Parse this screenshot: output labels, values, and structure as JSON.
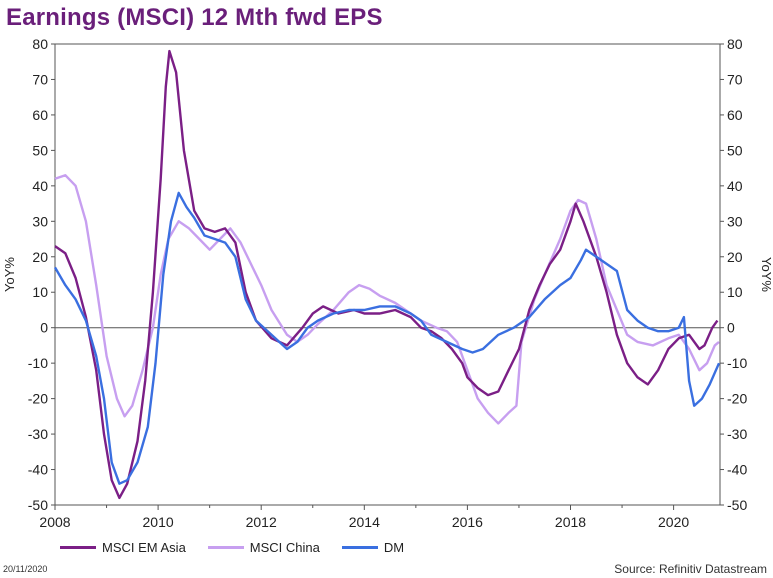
{
  "title": "Earnings (MSCI) 12 Mth fwd EPS",
  "footer": {
    "date": "20/11/2020",
    "source": "Source: Refinitiv Datastream"
  },
  "colors": {
    "msci_em_asia": "#7b1f86",
    "msci_china": "#c79ff0",
    "dm": "#3a6fe0",
    "title": "#6a1f7a"
  },
  "chart_data": {
    "type": "line",
    "title": "Earnings (MSCI) 12 Mth fwd EPS",
    "xlabel": "",
    "ylabel_left": "YoY%",
    "ylabel_right": "YoY%",
    "xlim": [
      2008,
      2020.9
    ],
    "ylim": [
      -50,
      80
    ],
    "x_ticks": [
      "2008",
      "2010",
      "2012",
      "2014",
      "2016",
      "2018",
      "2020"
    ],
    "y_ticks": [
      80,
      70,
      60,
      50,
      40,
      30,
      20,
      10,
      0,
      -10,
      -20,
      -30,
      -40,
      -50
    ],
    "legend_position": "bottom",
    "grid": false,
    "series": [
      {
        "name": "MSCI EM Asia",
        "color": "#7b1f86",
        "points": [
          [
            2008.0,
            23
          ],
          [
            2008.2,
            21
          ],
          [
            2008.4,
            14
          ],
          [
            2008.6,
            3
          ],
          [
            2008.8,
            -12
          ],
          [
            2008.95,
            -30
          ],
          [
            2009.1,
            -43
          ],
          [
            2009.25,
            -48
          ],
          [
            2009.4,
            -44
          ],
          [
            2009.6,
            -32
          ],
          [
            2009.75,
            -15
          ],
          [
            2009.9,
            10
          ],
          [
            2010.05,
            42
          ],
          [
            2010.15,
            68
          ],
          [
            2010.22,
            78
          ],
          [
            2010.35,
            72
          ],
          [
            2010.5,
            50
          ],
          [
            2010.7,
            33
          ],
          [
            2010.9,
            28
          ],
          [
            2011.1,
            27
          ],
          [
            2011.3,
            28
          ],
          [
            2011.5,
            24
          ],
          [
            2011.7,
            10
          ],
          [
            2011.9,
            2
          ],
          [
            2012.2,
            -3
          ],
          [
            2012.5,
            -5
          ],
          [
            2012.8,
            0
          ],
          [
            2013.0,
            4
          ],
          [
            2013.2,
            6
          ],
          [
            2013.5,
            4
          ],
          [
            2013.8,
            5
          ],
          [
            2014.0,
            4
          ],
          [
            2014.3,
            4
          ],
          [
            2014.6,
            5
          ],
          [
            2014.9,
            3
          ],
          [
            2015.1,
            0
          ],
          [
            2015.3,
            -1
          ],
          [
            2015.5,
            -3
          ],
          [
            2015.7,
            -6
          ],
          [
            2015.9,
            -10
          ],
          [
            2016.0,
            -14
          ],
          [
            2016.2,
            -17
          ],
          [
            2016.4,
            -19
          ],
          [
            2016.6,
            -18
          ],
          [
            2016.8,
            -12
          ],
          [
            2017.0,
            -6
          ],
          [
            2017.2,
            5
          ],
          [
            2017.4,
            12
          ],
          [
            2017.6,
            18
          ],
          [
            2017.8,
            22
          ],
          [
            2018.0,
            30
          ],
          [
            2018.1,
            35
          ],
          [
            2018.25,
            30
          ],
          [
            2018.5,
            20
          ],
          [
            2018.7,
            10
          ],
          [
            2018.9,
            -2
          ],
          [
            2019.1,
            -10
          ],
          [
            2019.3,
            -14
          ],
          [
            2019.5,
            -16
          ],
          [
            2019.7,
            -12
          ],
          [
            2019.9,
            -6
          ],
          [
            2020.1,
            -3
          ],
          [
            2020.3,
            -2
          ],
          [
            2020.5,
            -6
          ],
          [
            2020.6,
            -5
          ],
          [
            2020.75,
            0
          ],
          [
            2020.85,
            2
          ]
        ]
      },
      {
        "name": "MSCI China",
        "color": "#c79ff0",
        "points": [
          [
            2008.0,
            42
          ],
          [
            2008.2,
            43
          ],
          [
            2008.4,
            40
          ],
          [
            2008.6,
            30
          ],
          [
            2008.8,
            12
          ],
          [
            2009.0,
            -8
          ],
          [
            2009.2,
            -20
          ],
          [
            2009.35,
            -25
          ],
          [
            2009.5,
            -22
          ],
          [
            2009.7,
            -12
          ],
          [
            2009.9,
            0
          ],
          [
            2010.05,
            15
          ],
          [
            2010.2,
            25
          ],
          [
            2010.4,
            30
          ],
          [
            2010.6,
            28
          ],
          [
            2010.8,
            25
          ],
          [
            2011.0,
            22
          ],
          [
            2011.2,
            25
          ],
          [
            2011.4,
            28
          ],
          [
            2011.6,
            24
          ],
          [
            2011.8,
            18
          ],
          [
            2012.0,
            12
          ],
          [
            2012.2,
            5
          ],
          [
            2012.5,
            -2
          ],
          [
            2012.7,
            -4
          ],
          [
            2012.9,
            -2
          ],
          [
            2013.1,
            1
          ],
          [
            2013.4,
            5
          ],
          [
            2013.7,
            10
          ],
          [
            2013.9,
            12
          ],
          [
            2014.1,
            11
          ],
          [
            2014.3,
            9
          ],
          [
            2014.6,
            7
          ],
          [
            2014.9,
            4
          ],
          [
            2015.1,
            2
          ],
          [
            2015.4,
            0
          ],
          [
            2015.6,
            -1
          ],
          [
            2015.8,
            -4
          ],
          [
            2016.0,
            -12
          ],
          [
            2016.2,
            -20
          ],
          [
            2016.4,
            -24
          ],
          [
            2016.6,
            -27
          ],
          [
            2016.8,
            -24
          ],
          [
            2016.95,
            -22
          ],
          [
            2017.05,
            -4
          ],
          [
            2017.3,
            8
          ],
          [
            2017.5,
            15
          ],
          [
            2017.8,
            25
          ],
          [
            2018.0,
            33
          ],
          [
            2018.15,
            36
          ],
          [
            2018.3,
            35
          ],
          [
            2018.5,
            25
          ],
          [
            2018.7,
            12
          ],
          [
            2018.9,
            5
          ],
          [
            2019.1,
            -2
          ],
          [
            2019.3,
            -4
          ],
          [
            2019.6,
            -5
          ],
          [
            2019.9,
            -3
          ],
          [
            2020.1,
            -2
          ],
          [
            2020.3,
            -6
          ],
          [
            2020.5,
            -12
          ],
          [
            2020.65,
            -10
          ],
          [
            2020.8,
            -5
          ],
          [
            2020.88,
            -4
          ]
        ]
      },
      {
        "name": "DM",
        "color": "#3a6fe0",
        "points": [
          [
            2008.0,
            17
          ],
          [
            2008.2,
            12
          ],
          [
            2008.4,
            8
          ],
          [
            2008.6,
            2
          ],
          [
            2008.8,
            -8
          ],
          [
            2008.95,
            -20
          ],
          [
            2009.1,
            -38
          ],
          [
            2009.25,
            -44
          ],
          [
            2009.4,
            -43
          ],
          [
            2009.6,
            -38
          ],
          [
            2009.8,
            -28
          ],
          [
            2009.95,
            -10
          ],
          [
            2010.1,
            15
          ],
          [
            2010.25,
            30
          ],
          [
            2010.4,
            38
          ],
          [
            2010.55,
            34
          ],
          [
            2010.7,
            31
          ],
          [
            2010.9,
            26
          ],
          [
            2011.1,
            25
          ],
          [
            2011.3,
            24
          ],
          [
            2011.5,
            20
          ],
          [
            2011.7,
            8
          ],
          [
            2011.9,
            2
          ],
          [
            2012.2,
            -2
          ],
          [
            2012.5,
            -6
          ],
          [
            2012.7,
            -4
          ],
          [
            2012.9,
            0
          ],
          [
            2013.1,
            2
          ],
          [
            2013.4,
            4
          ],
          [
            2013.7,
            5
          ],
          [
            2014.0,
            5
          ],
          [
            2014.3,
            6
          ],
          [
            2014.6,
            6
          ],
          [
            2014.9,
            4
          ],
          [
            2015.1,
            2
          ],
          [
            2015.3,
            -2
          ],
          [
            2015.6,
            -4
          ],
          [
            2015.9,
            -6
          ],
          [
            2016.1,
            -7
          ],
          [
            2016.3,
            -6
          ],
          [
            2016.6,
            -2
          ],
          [
            2016.9,
            0
          ],
          [
            2017.2,
            3
          ],
          [
            2017.5,
            8
          ],
          [
            2017.8,
            12
          ],
          [
            2018.0,
            14
          ],
          [
            2018.2,
            19
          ],
          [
            2018.3,
            22
          ],
          [
            2018.5,
            20
          ],
          [
            2018.7,
            18
          ],
          [
            2018.9,
            16
          ],
          [
            2019.1,
            5
          ],
          [
            2019.3,
            2
          ],
          [
            2019.5,
            0
          ],
          [
            2019.7,
            -1
          ],
          [
            2019.9,
            -1
          ],
          [
            2020.1,
            0
          ],
          [
            2020.2,
            3
          ],
          [
            2020.3,
            -15
          ],
          [
            2020.4,
            -22
          ],
          [
            2020.55,
            -20
          ],
          [
            2020.7,
            -16
          ],
          [
            2020.88,
            -10
          ]
        ]
      }
    ]
  }
}
